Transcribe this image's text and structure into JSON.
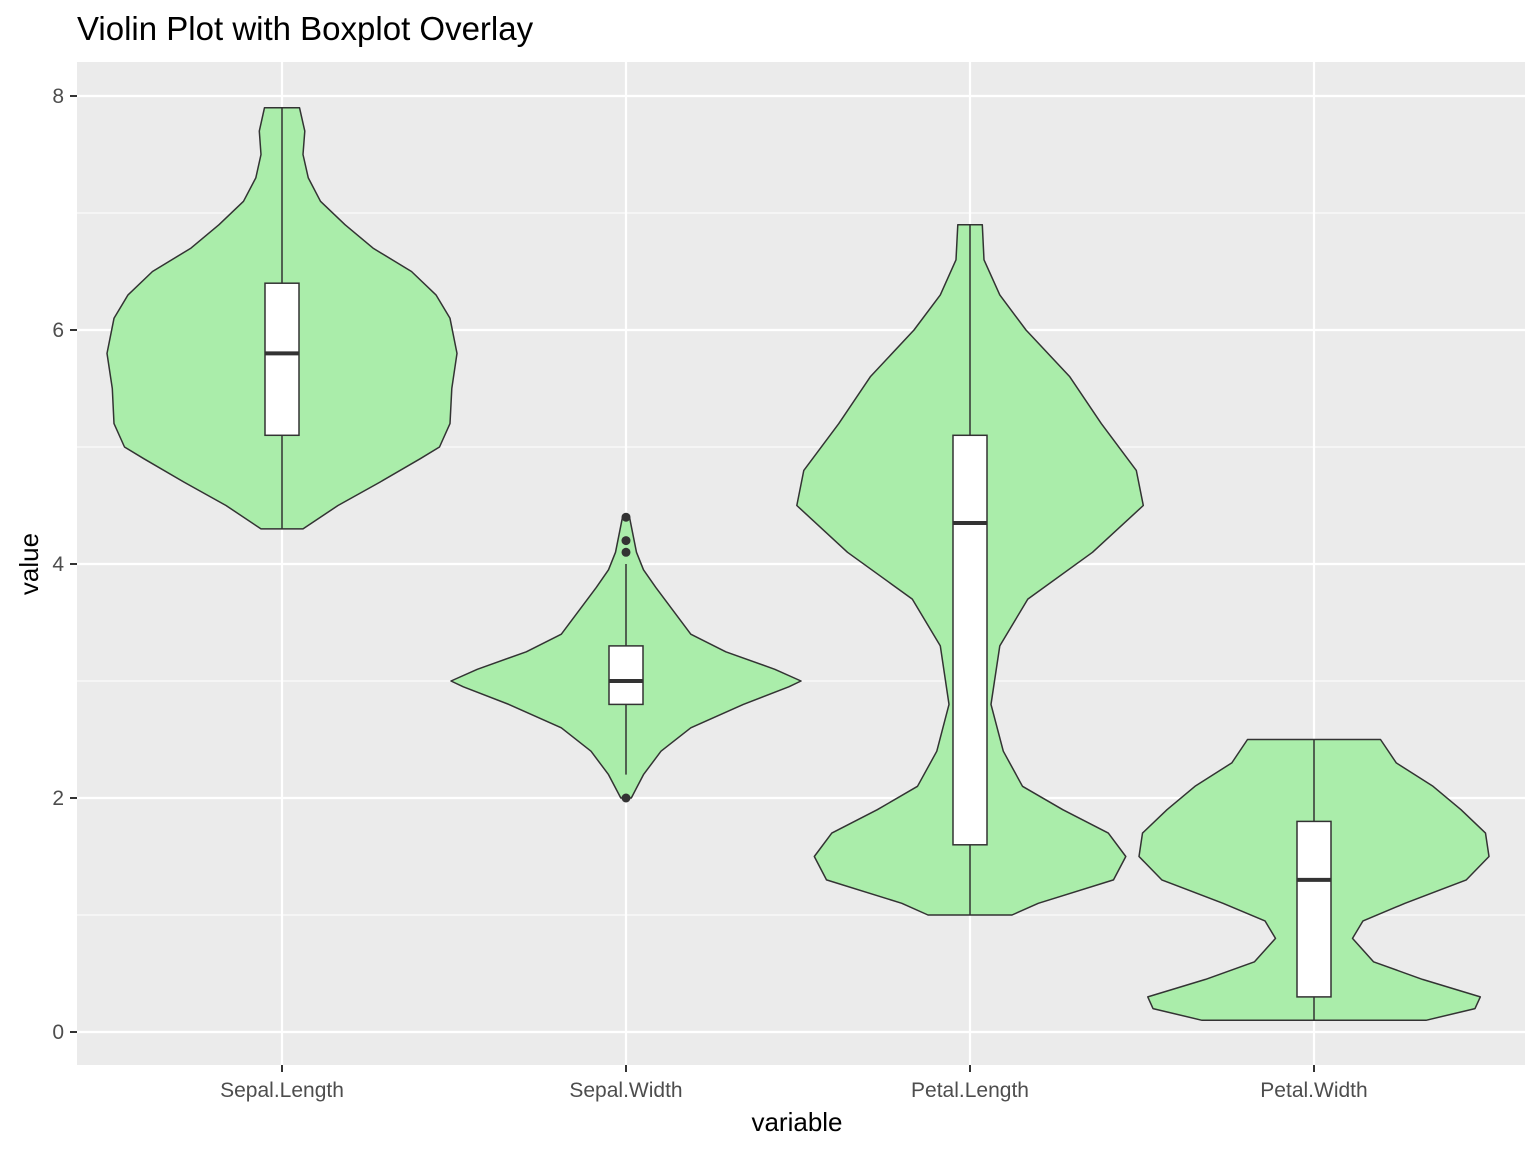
{
  "chart_data": {
    "type": "violin",
    "title": "Violin Plot with Boxplot Overlay",
    "xlabel": "variable",
    "ylabel": "value",
    "ylim": [
      -0.3,
      8.3
    ],
    "yticks": [
      0,
      2,
      4,
      6,
      8
    ],
    "grid": true,
    "colors": {
      "panel_bg": "#ebebeb",
      "grid": "#ffffff",
      "violin_fill": "#aaedaa",
      "outline": "#333333",
      "box_fill": "#ffffff",
      "tick_text": "#4d4d4d"
    },
    "categories": [
      "Sepal.Length",
      "Sepal.Width",
      "Petal.Length",
      "Petal.Width"
    ],
    "series": [
      {
        "category": "Sepal.Length",
        "min": 4.3,
        "q1": 5.1,
        "median": 5.8,
        "q3": 6.4,
        "max": 7.9,
        "whisker_low": 4.3,
        "whisker_high": 7.9,
        "outliers": [],
        "density": [
          [
            4.3,
            0.12
          ],
          [
            4.5,
            0.32
          ],
          [
            4.7,
            0.56
          ],
          [
            4.9,
            0.79
          ],
          [
            5.0,
            0.9
          ],
          [
            5.2,
            0.96
          ],
          [
            5.5,
            0.97
          ],
          [
            5.8,
            1.0
          ],
          [
            6.1,
            0.96
          ],
          [
            6.3,
            0.88
          ],
          [
            6.5,
            0.74
          ],
          [
            6.7,
            0.52
          ],
          [
            6.9,
            0.36
          ],
          [
            7.1,
            0.22
          ],
          [
            7.3,
            0.15
          ],
          [
            7.5,
            0.12
          ],
          [
            7.7,
            0.13
          ],
          [
            7.9,
            0.1
          ]
        ]
      },
      {
        "category": "Sepal.Width",
        "min": 2.0,
        "q1": 2.8,
        "median": 3.0,
        "q3": 3.3,
        "max": 4.4,
        "whisker_low": 2.2,
        "whisker_high": 4.0,
        "outliers": [
          2.0,
          4.1,
          4.2,
          4.4
        ],
        "density": [
          [
            2.0,
            0.03
          ],
          [
            2.2,
            0.1
          ],
          [
            2.4,
            0.2
          ],
          [
            2.6,
            0.37
          ],
          [
            2.8,
            0.67
          ],
          [
            2.95,
            0.93
          ],
          [
            3.0,
            1.0
          ],
          [
            3.1,
            0.85
          ],
          [
            3.25,
            0.57
          ],
          [
            3.4,
            0.37
          ],
          [
            3.6,
            0.27
          ],
          [
            3.8,
            0.17
          ],
          [
            3.95,
            0.1
          ],
          [
            4.1,
            0.06
          ],
          [
            4.25,
            0.04
          ],
          [
            4.4,
            0.02
          ]
        ]
      },
      {
        "category": "Petal.Length",
        "min": 1.0,
        "q1": 1.6,
        "median": 4.35,
        "q3": 5.1,
        "max": 6.9,
        "whisker_low": 1.0,
        "whisker_high": 6.9,
        "outliers": [],
        "density": [
          [
            1.0,
            0.24
          ],
          [
            1.1,
            0.39
          ],
          [
            1.3,
            0.82
          ],
          [
            1.5,
            0.89
          ],
          [
            1.7,
            0.79
          ],
          [
            1.9,
            0.53
          ],
          [
            2.1,
            0.3
          ],
          [
            2.4,
            0.19
          ],
          [
            2.8,
            0.12
          ],
          [
            3.3,
            0.17
          ],
          [
            3.7,
            0.33
          ],
          [
            4.1,
            0.7
          ],
          [
            4.5,
            0.99
          ],
          [
            4.8,
            0.95
          ],
          [
            5.2,
            0.75
          ],
          [
            5.6,
            0.57
          ],
          [
            6.0,
            0.32
          ],
          [
            6.3,
            0.17
          ],
          [
            6.6,
            0.08
          ],
          [
            6.9,
            0.07
          ]
        ]
      },
      {
        "category": "Petal.Width",
        "min": 0.1,
        "q1": 0.3,
        "median": 1.3,
        "q3": 1.8,
        "max": 2.5,
        "whisker_low": 0.1,
        "whisker_high": 2.5,
        "outliers": [],
        "density": [
          [
            0.1,
            0.64
          ],
          [
            0.2,
            0.92
          ],
          [
            0.3,
            0.95
          ],
          [
            0.45,
            0.62
          ],
          [
            0.6,
            0.34
          ],
          [
            0.8,
            0.22
          ],
          [
            0.95,
            0.28
          ],
          [
            1.1,
            0.52
          ],
          [
            1.3,
            0.87
          ],
          [
            1.5,
            1.0
          ],
          [
            1.7,
            0.98
          ],
          [
            1.9,
            0.84
          ],
          [
            2.1,
            0.68
          ],
          [
            2.3,
            0.47
          ],
          [
            2.5,
            0.38
          ]
        ]
      }
    ]
  }
}
